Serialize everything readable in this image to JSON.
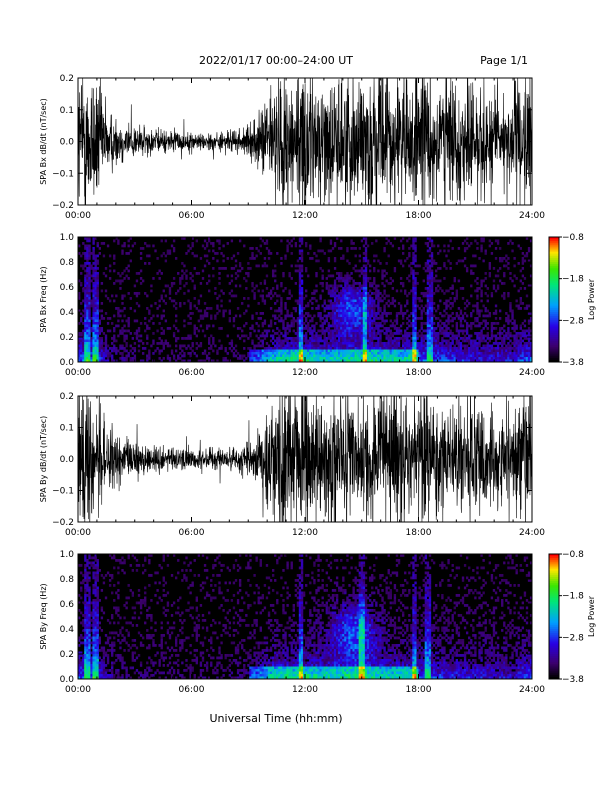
{
  "header": {
    "title": "2022/01/17  00:00–24:00 UT",
    "page": "Page 1/1"
  },
  "xlabel": "Universal Time (hh:mm)",
  "chart_data": [
    {
      "type": "line",
      "ylabel": "SPA Bx dB/dt (nT/sec)",
      "xlim": [
        0,
        24
      ],
      "ylim": [
        -0.2,
        0.2
      ],
      "x_ticks": [
        "00:00",
        "06:00",
        "12:00",
        "18:00",
        "24:00"
      ],
      "y_ticks": [
        "0.2",
        "0.1",
        "0.0",
        "−0.1",
        "−0.2"
      ],
      "envelope": {
        "x": [
          0,
          0.5,
          1,
          1.5,
          2,
          3,
          4,
          5,
          6,
          7,
          8,
          9,
          9.5,
          10,
          10.5,
          11,
          11.5,
          12,
          13,
          14,
          15,
          16,
          17,
          18,
          19,
          20,
          21,
          22,
          23,
          23.7,
          24
        ],
        "amplitude": [
          0.2,
          0.2,
          0.2,
          0.1,
          0.07,
          0.05,
          0.035,
          0.03,
          0.025,
          0.025,
          0.03,
          0.04,
          0.07,
          0.13,
          0.18,
          0.2,
          0.2,
          0.2,
          0.17,
          0.18,
          0.2,
          0.19,
          0.18,
          0.2,
          0.19,
          0.17,
          0.16,
          0.15,
          0.14,
          0.2,
          0.2
        ]
      }
    },
    {
      "type": "heatmap",
      "ylabel": "SPA Bx Freq (Hz)",
      "colorbar_label": "Log Power",
      "colorbar_ticks": [
        "−0.8",
        "−1.8",
        "−2.8",
        "−3.8"
      ],
      "clim": [
        -3.8,
        -0.8
      ],
      "xlim": [
        0,
        24
      ],
      "ylim": [
        0,
        1.0
      ],
      "x_ticks": [
        "00:00",
        "06:00",
        "12:00",
        "18:00",
        "24:00"
      ],
      "y_ticks": [
        "1.0",
        "0.8",
        "0.6",
        "0.4",
        "0.2",
        "0.0"
      ],
      "features": {
        "bright_columns_hours": [
          0.5,
          0.9,
          1.0,
          11.8,
          15.2,
          17.8,
          18.6
        ],
        "hotspot": {
          "center_hour": 14.5,
          "center_freq": 0.42,
          "width_hours": 1.4,
          "height_freq": 0.25
        }
      }
    },
    {
      "type": "line",
      "ylabel": "SPA By dB/dt (nT/sec)",
      "xlim": [
        0,
        24
      ],
      "ylim": [
        -0.2,
        0.2
      ],
      "x_ticks": [
        "00:00",
        "06:00",
        "12:00",
        "18:00",
        "24:00"
      ],
      "y_ticks": [
        "0.2",
        "0.1",
        "0.0",
        "−0.1",
        "−0.2"
      ],
      "envelope": {
        "x": [
          0,
          0.5,
          1,
          1.5,
          2,
          3,
          4,
          5,
          6,
          7,
          8,
          9,
          9.5,
          10,
          10.5,
          11,
          11.5,
          12,
          13,
          14,
          15,
          16,
          17,
          18,
          19,
          20,
          21,
          22,
          23,
          23.7,
          24
        ],
        "amplitude": [
          0.2,
          0.2,
          0.2,
          0.1,
          0.07,
          0.05,
          0.04,
          0.035,
          0.03,
          0.03,
          0.035,
          0.05,
          0.09,
          0.15,
          0.2,
          0.2,
          0.2,
          0.2,
          0.18,
          0.18,
          0.19,
          0.18,
          0.18,
          0.19,
          0.17,
          0.16,
          0.15,
          0.13,
          0.13,
          0.2,
          0.2
        ]
      }
    },
    {
      "type": "heatmap",
      "ylabel": "SPA By Freq (Hz)",
      "colorbar_label": "Log Power",
      "colorbar_ticks": [
        "−0.8",
        "−1.8",
        "−2.8",
        "−3.8"
      ],
      "clim": [
        -3.8,
        -0.8
      ],
      "xlim": [
        0,
        24
      ],
      "ylim": [
        0,
        1.0
      ],
      "x_ticks": [
        "00:00",
        "06:00",
        "12:00",
        "18:00",
        "24:00"
      ],
      "y_ticks": [
        "1.0",
        "0.8",
        "0.6",
        "0.4",
        "0.2",
        "0.0"
      ],
      "features": {
        "bright_columns_hours": [
          0.5,
          0.9,
          1.0,
          11.8,
          15.0,
          17.8,
          18.5
        ],
        "hotspot": {
          "center_hour": 14.6,
          "center_freq": 0.38,
          "width_hours": 1.6,
          "height_freq": 0.3
        }
      }
    }
  ]
}
